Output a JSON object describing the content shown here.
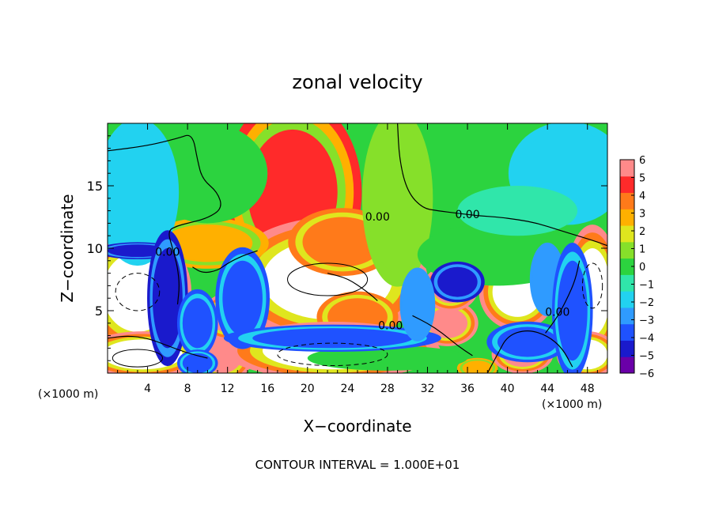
{
  "chart_data": {
    "type": "heatmap",
    "title": "zonal velocity",
    "xlabel": "X−coordinate",
    "ylabel": "Z−coordinate",
    "x_unit_left": "(×1000 m)",
    "x_unit_right": "(×1000 m)",
    "footer": "CONTOUR INTERVAL = 1.000E+01",
    "xlim": [
      0,
      50
    ],
    "ylim": [
      0,
      20
    ],
    "x_ticks": [
      4,
      8,
      12,
      16,
      20,
      24,
      28,
      32,
      36,
      40,
      44,
      48
    ],
    "y_ticks": [
      5,
      10,
      15
    ],
    "x_tick_labels": [
      "4",
      "8",
      "12",
      "16",
      "20",
      "24",
      "28",
      "32",
      "36",
      "40",
      "44",
      "48"
    ],
    "y_tick_labels": [
      "5",
      "10",
      "15"
    ],
    "colorbar": {
      "min": -6,
      "max": 6,
      "ticks": [
        6,
        5,
        4,
        3,
        2,
        1,
        0,
        -1,
        -2,
        -3,
        -4,
        -5,
        -6
      ],
      "tick_labels": [
        "6",
        "5",
        "4",
        "3",
        "2",
        "1",
        "0",
        "−1",
        "−2",
        "−3",
        "−4",
        "−5",
        "−6"
      ],
      "colors": [
        "#6a00a8",
        "#1a1acc",
        "#1f52ff",
        "#2f9bff",
        "#22d2f0",
        "#30e6aa",
        "#2cd33f",
        "#86e02a",
        "#dfe61e",
        "#ffb000",
        "#ff7a1a",
        "#ff2a2a",
        "#ff8a8a"
      ]
    },
    "contour_labels": [
      {
        "text": "0.00",
        "x": 27,
        "y": 12.2
      },
      {
        "text": "0.00",
        "x": 36,
        "y": 12.4
      },
      {
        "text": "0.00",
        "x": 6,
        "y": 9.4
      },
      {
        "text": "0.00",
        "x": 28.3,
        "y": 3.5
      },
      {
        "text": "0.00",
        "x": 45,
        "y": 4.6
      }
    ],
    "features": [
      {
        "kind": "blob",
        "x": 18.5,
        "y": 14.5,
        "rx": 4.5,
        "ry": 5,
        "value": 5
      },
      {
        "kind": "blob",
        "x": 22,
        "y": 7.5,
        "rx": 6.5,
        "ry": 3.2,
        "value": 7
      },
      {
        "kind": "blob",
        "x": 23.5,
        "y": 10.5,
        "rx": 4,
        "ry": 2,
        "value": 4
      },
      {
        "kind": "blob",
        "x": 25,
        "y": 4.5,
        "rx": 3,
        "ry": 1.5,
        "value": 4
      },
      {
        "kind": "blob",
        "x": 10,
        "y": 10.4,
        "rx": 4.5,
        "ry": 1.5,
        "value": 3
      },
      {
        "kind": "blob",
        "x": 3,
        "y": 6.5,
        "rx": 3.5,
        "ry": 3.2,
        "value": 7
      },
      {
        "kind": "blob",
        "x": 3.5,
        "y": 1.5,
        "rx": 4,
        "ry": 1.2,
        "value": 7
      },
      {
        "kind": "blob",
        "x": 11.5,
        "y": 1.5,
        "rx": 2,
        "ry": 1.5,
        "value": 6
      },
      {
        "kind": "blob",
        "x": 11.8,
        "y": 4.5,
        "rx": 1.5,
        "ry": 1.2,
        "value": 6
      },
      {
        "kind": "blob",
        "x": 22.5,
        "y": 1.8,
        "rx": 7,
        "ry": 1.5,
        "value": 7
      },
      {
        "kind": "blob",
        "x": 34,
        "y": 4,
        "rx": 2,
        "ry": 1.2,
        "value": 6
      },
      {
        "kind": "blob",
        "x": 34.3,
        "y": 6.8,
        "rx": 1.8,
        "ry": 1.2,
        "value": 6
      },
      {
        "kind": "blob",
        "x": 41,
        "y": 6.5,
        "rx": 2.5,
        "ry": 2,
        "value": 7
      },
      {
        "kind": "blob",
        "x": 41.5,
        "y": 1.5,
        "rx": 2,
        "ry": 1,
        "value": 6
      },
      {
        "kind": "blob",
        "x": 48.5,
        "y": 6.5,
        "rx": 1.8,
        "ry": 3.5,
        "value": 7
      },
      {
        "kind": "blob",
        "x": 48,
        "y": 1.5,
        "rx": 2,
        "ry": 1.2,
        "value": 7
      },
      {
        "kind": "blob",
        "x": 37,
        "y": 0.4,
        "rx": 1.5,
        "ry": 0.6,
        "value": 3
      },
      {
        "kind": "blob",
        "x": 29,
        "y": 14,
        "rx": 3,
        "ry": 6,
        "value": 1
      },
      {
        "kind": "blob",
        "x": 10,
        "y": 16,
        "rx": 6,
        "ry": 4,
        "value": 0
      },
      {
        "kind": "blob",
        "x": 39,
        "y": 9.5,
        "rx": 8,
        "ry": 2.5,
        "value": 0
      },
      {
        "kind": "blob",
        "x": 28,
        "y": 1.2,
        "rx": 8,
        "ry": 1,
        "value": 0
      },
      {
        "kind": "blob",
        "x": 46,
        "y": 16,
        "rx": 5,
        "ry": 3.5,
        "value": -2
      },
      {
        "kind": "blob",
        "x": 41,
        "y": 13,
        "rx": 6,
        "ry": 2,
        "value": -1
      },
      {
        "kind": "blob",
        "x": 3,
        "y": 14.5,
        "rx": 3.5,
        "ry": 5,
        "value": -2
      },
      {
        "kind": "blob",
        "x": 3,
        "y": 9.8,
        "rx": 3,
        "ry": 0.5,
        "value": -5
      },
      {
        "kind": "blob",
        "x": 6,
        "y": 6,
        "rx": 1.5,
        "ry": 4,
        "value": -5
      },
      {
        "kind": "blob",
        "x": 9,
        "y": 4,
        "rx": 1.5,
        "ry": 2,
        "value": -4
      },
      {
        "kind": "blob",
        "x": 13.5,
        "y": 6,
        "rx": 2,
        "ry": 3,
        "value": -4
      },
      {
        "kind": "blob",
        "x": 22.5,
        "y": 2.8,
        "rx": 8,
        "ry": 0.8,
        "value": -4
      },
      {
        "kind": "blob",
        "x": 9,
        "y": 0.8,
        "rx": 1.5,
        "ry": 0.8,
        "value": -4
      },
      {
        "kind": "blob",
        "x": 35,
        "y": 7.3,
        "rx": 2,
        "ry": 1.2,
        "value": -5
      },
      {
        "kind": "blob",
        "x": 44,
        "y": 7.5,
        "rx": 1.5,
        "ry": 2.5,
        "value": -3
      },
      {
        "kind": "blob",
        "x": 42,
        "y": 2.5,
        "rx": 3,
        "ry": 1.2,
        "value": -4
      },
      {
        "kind": "blob",
        "x": 31,
        "y": 5.5,
        "rx": 1.5,
        "ry": 2.5,
        "value": -3
      },
      {
        "kind": "blob",
        "x": 46.5,
        "y": 5,
        "rx": 1.5,
        "ry": 4,
        "value": -4
      }
    ]
  }
}
